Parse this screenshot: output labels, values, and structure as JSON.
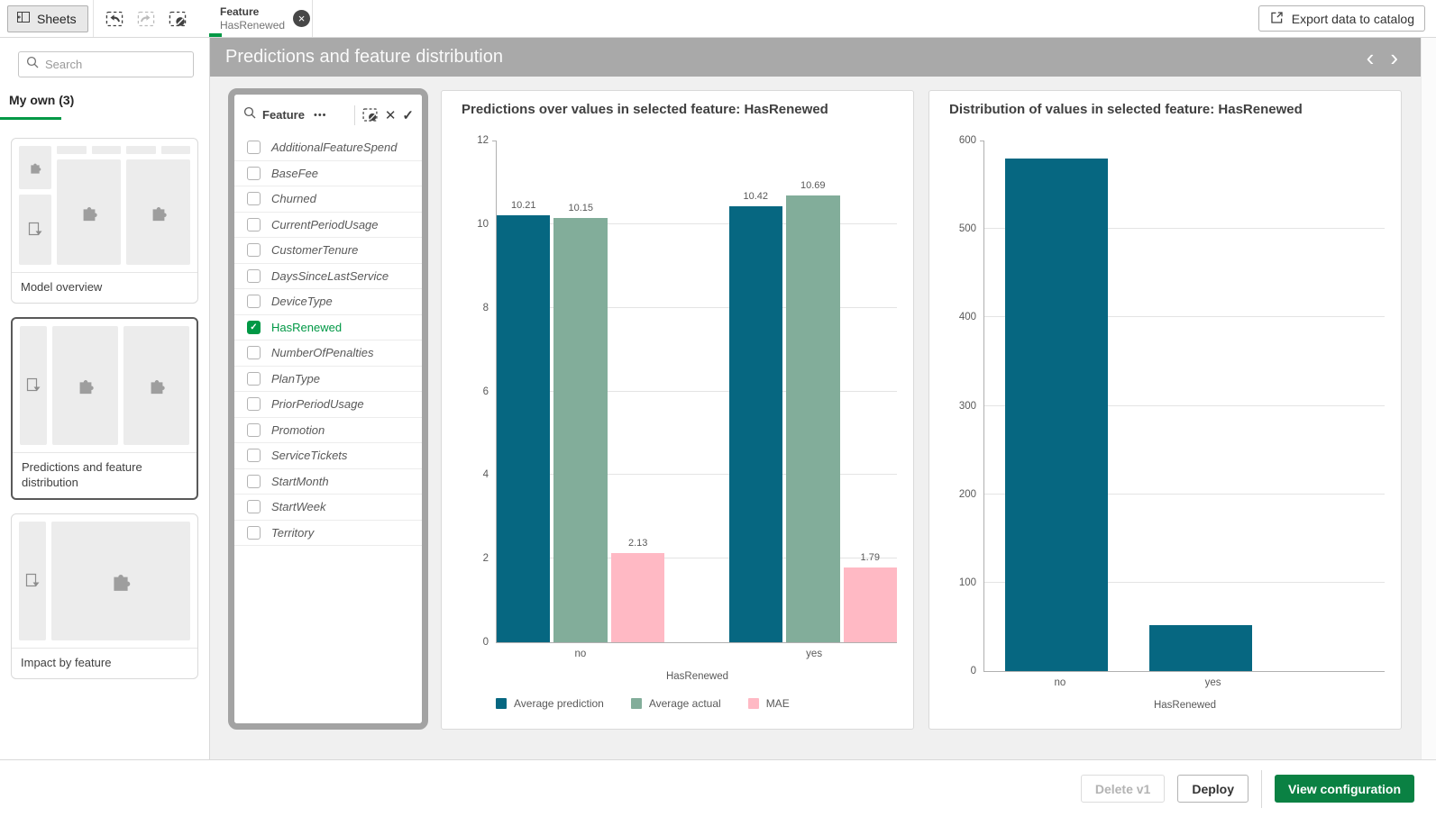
{
  "topbar": {
    "sheets_label": "Sheets",
    "selection_tab": {
      "field": "Feature",
      "value": "HasRenewed"
    },
    "export_label": "Export data to catalog"
  },
  "sidebar": {
    "search_placeholder": "Search",
    "tab_label": "My own (3)",
    "sheets": [
      {
        "label": "Model overview",
        "selected": false,
        "thumb": "kpi-filter-two-charts"
      },
      {
        "label": "Predictions and feature distribution",
        "selected": true,
        "thumb": "filter-two-charts"
      },
      {
        "label": "Impact by feature",
        "selected": false,
        "thumb": "filter-one-chart"
      }
    ]
  },
  "sheet_header": {
    "title": "Predictions and feature distribution"
  },
  "filter_panel": {
    "field_label": "Feature",
    "items": [
      {
        "label": "AdditionalFeatureSpend",
        "checked": false
      },
      {
        "label": "BaseFee",
        "checked": false
      },
      {
        "label": "Churned",
        "checked": false
      },
      {
        "label": "CurrentPeriodUsage",
        "checked": false
      },
      {
        "label": "CustomerTenure",
        "checked": false
      },
      {
        "label": "DaysSinceLastService",
        "checked": false
      },
      {
        "label": "DeviceType",
        "checked": false
      },
      {
        "label": "HasRenewed",
        "checked": true
      },
      {
        "label": "NumberOfPenalties",
        "checked": false
      },
      {
        "label": "PlanType",
        "checked": false
      },
      {
        "label": "PriorPeriodUsage",
        "checked": false
      },
      {
        "label": "Promotion",
        "checked": false
      },
      {
        "label": "ServiceTickets",
        "checked": false
      },
      {
        "label": "StartMonth",
        "checked": false
      },
      {
        "label": "StartWeek",
        "checked": false
      },
      {
        "label": "Territory",
        "checked": false
      }
    ]
  },
  "footer": {
    "delete_label": "Delete v1",
    "deploy_label": "Deploy",
    "view_configuration_label": "View configuration"
  },
  "icons": {
    "more_menu": "•••",
    "cancel": "✕",
    "confirm": "✓",
    "close": "×",
    "checkmark": "✓",
    "chevron_left": "‹",
    "chevron_right": "›"
  },
  "colors": {
    "selection_green": "#009845",
    "button_green": "#0a8143",
    "prediction_teal": "#066781",
    "actual_sage": "#82ad9a",
    "mae_pink": "#ffb9c4"
  },
  "chart_data": [
    {
      "type": "bar",
      "title": "Predictions over values in selected feature: HasRenewed",
      "categories": [
        "no",
        "yes"
      ],
      "series": [
        {
          "name": "Average prediction",
          "color": "#066781",
          "values": [
            10.21,
            10.42
          ]
        },
        {
          "name": "Average actual",
          "color": "#82ad9a",
          "values": [
            10.15,
            10.69
          ]
        },
        {
          "name": "MAE",
          "color": "#ffb9c4",
          "values": [
            2.13,
            1.79
          ]
        }
      ],
      "xlabel": "HasRenewed",
      "ylim": [
        0,
        12
      ],
      "yticks": [
        0,
        2,
        4,
        6,
        8,
        10,
        12
      ],
      "grid": true,
      "data_labels": true,
      "legend_position": "bottom"
    },
    {
      "type": "bar",
      "title": "Distribution of values in selected feature: HasRenewed",
      "categories": [
        "no",
        "yes"
      ],
      "color": "#066781",
      "values": [
        580,
        52
      ],
      "xlabel": "HasRenewed",
      "ylim": [
        0,
        600
      ],
      "yticks": [
        0,
        100,
        200,
        300,
        400,
        500,
        600
      ],
      "grid": true,
      "data_labels": false,
      "legend_position": "none"
    }
  ]
}
